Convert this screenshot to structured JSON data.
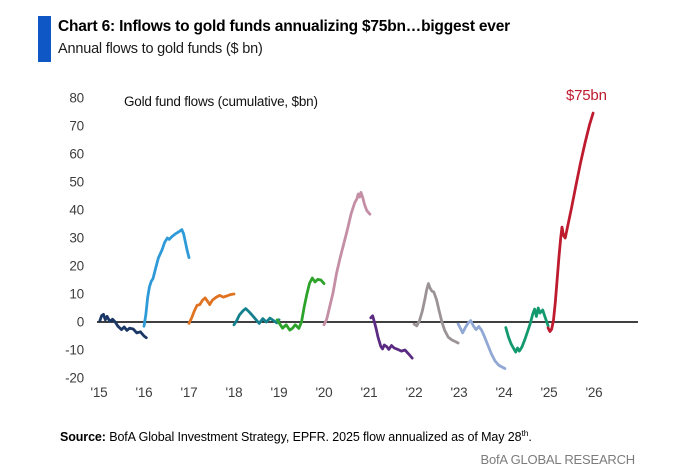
{
  "header": {
    "title": "Chart 6: Inflows to gold funds annualizing $75bn…biggest ever",
    "subtitle": "Annual flows to gold funds ($ bn)"
  },
  "chart_data": {
    "type": "line",
    "title": "Gold fund flows (cumulative, $bn)",
    "annotation": {
      "text": "$75bn",
      "color": "#BE1B2E"
    },
    "x_tick_labels": [
      "'15",
      "'16",
      "'17",
      "'18",
      "'19",
      "'20",
      "'21",
      "'22",
      "'23",
      "'24",
      "'25",
      "'26"
    ],
    "y_ticks": [
      80,
      70,
      60,
      50,
      40,
      30,
      20,
      10,
      0,
      -10,
      -20
    ],
    "ylim": [
      -20,
      80
    ],
    "grid": false,
    "legend": "none",
    "x_unit": "years since start of 2015; each series spans roughly one calendar year",
    "y_unit": "$bn cumulative flow",
    "series": [
      {
        "name": "2015",
        "color": "#1A3766",
        "points": [
          [
            0.02,
            0.5
          ],
          [
            0.06,
            2.3
          ],
          [
            0.1,
            2.7
          ],
          [
            0.14,
            0.8
          ],
          [
            0.18,
            2.0
          ],
          [
            0.24,
            0.2
          ],
          [
            0.3,
            1.0
          ],
          [
            0.36,
            0.0
          ],
          [
            0.42,
            -1.5
          ],
          [
            0.5,
            -2.7
          ],
          [
            0.56,
            -1.8
          ],
          [
            0.62,
            -3.0
          ],
          [
            0.68,
            -2.2
          ],
          [
            0.76,
            -2.5
          ],
          [
            0.84,
            -3.9
          ],
          [
            0.92,
            -3.5
          ],
          [
            1.0,
            -5.0
          ],
          [
            1.05,
            -5.6
          ]
        ]
      },
      {
        "name": "2016",
        "color": "#2E9BD8",
        "points": [
          [
            1.0,
            -1.5
          ],
          [
            1.04,
            2.5
          ],
          [
            1.08,
            8.6
          ],
          [
            1.12,
            12.5
          ],
          [
            1.16,
            14.5
          ],
          [
            1.2,
            15.5
          ],
          [
            1.26,
            19.3
          ],
          [
            1.32,
            22.9
          ],
          [
            1.4,
            25.7
          ],
          [
            1.46,
            28.5
          ],
          [
            1.52,
            30.0
          ],
          [
            1.56,
            29.5
          ],
          [
            1.62,
            30.5
          ],
          [
            1.7,
            31.5
          ],
          [
            1.78,
            32.3
          ],
          [
            1.84,
            33.0
          ],
          [
            1.88,
            31.5
          ],
          [
            1.92,
            28.5
          ],
          [
            1.96,
            25.5
          ],
          [
            2.0,
            23.0
          ]
        ]
      },
      {
        "name": "2017",
        "color": "#DF7321",
        "points": [
          [
            2.0,
            -0.5
          ],
          [
            2.06,
            1.5
          ],
          [
            2.12,
            4.0
          ],
          [
            2.18,
            6.0
          ],
          [
            2.24,
            6.2
          ],
          [
            2.3,
            7.8
          ],
          [
            2.36,
            8.6
          ],
          [
            2.42,
            7.2
          ],
          [
            2.46,
            6.2
          ],
          [
            2.52,
            7.8
          ],
          [
            2.6,
            8.8
          ],
          [
            2.68,
            9.5
          ],
          [
            2.76,
            8.9
          ],
          [
            2.84,
            9.3
          ],
          [
            2.92,
            9.8
          ],
          [
            3.0,
            10.0
          ]
        ]
      },
      {
        "name": "2018",
        "color": "#15808D",
        "points": [
          [
            3.0,
            -1.0
          ],
          [
            3.06,
            0.5
          ],
          [
            3.12,
            2.5
          ],
          [
            3.2,
            4.0
          ],
          [
            3.26,
            4.8
          ],
          [
            3.32,
            3.9
          ],
          [
            3.4,
            2.5
          ],
          [
            3.48,
            1.0
          ],
          [
            3.56,
            -0.5
          ],
          [
            3.64,
            1.2
          ],
          [
            3.72,
            0.0
          ],
          [
            3.8,
            1.4
          ],
          [
            3.88,
            0.5
          ],
          [
            3.95,
            -0.3
          ],
          [
            4.0,
            0.8
          ]
        ]
      },
      {
        "name": "2019",
        "color": "#2EA32C",
        "points": [
          [
            3.96,
            0.8
          ],
          [
            4.02,
            -0.8
          ],
          [
            4.08,
            -2.2
          ],
          [
            4.16,
            -1.0
          ],
          [
            4.24,
            -2.9
          ],
          [
            4.3,
            -2.2
          ],
          [
            4.36,
            -1.0
          ],
          [
            4.44,
            -2.3
          ],
          [
            4.5,
            0.0
          ],
          [
            4.56,
            5.4
          ],
          [
            4.62,
            10.0
          ],
          [
            4.68,
            13.9
          ],
          [
            4.74,
            15.7
          ],
          [
            4.8,
            14.3
          ],
          [
            4.86,
            15.2
          ],
          [
            4.93,
            15.0
          ],
          [
            5.0,
            13.7
          ]
        ]
      },
      {
        "name": "2020",
        "color": "#C48EA4",
        "points": [
          [
            5.0,
            -1.0
          ],
          [
            5.06,
            1.0
          ],
          [
            5.12,
            5.0
          ],
          [
            5.2,
            10.4
          ],
          [
            5.28,
            17.5
          ],
          [
            5.36,
            23.0
          ],
          [
            5.44,
            28.0
          ],
          [
            5.52,
            33.0
          ],
          [
            5.6,
            38.5
          ],
          [
            5.68,
            42.5
          ],
          [
            5.73,
            44.0
          ],
          [
            5.76,
            45.7
          ],
          [
            5.79,
            44.6
          ],
          [
            5.82,
            46.3
          ],
          [
            5.86,
            44.5
          ],
          [
            5.9,
            42.0
          ],
          [
            5.95,
            39.8
          ],
          [
            6.02,
            38.5
          ]
        ]
      },
      {
        "name": "2021",
        "color": "#5B2B84",
        "points": [
          [
            6.04,
            1.5
          ],
          [
            6.08,
            2.2
          ],
          [
            6.12,
            0.0
          ],
          [
            6.16,
            -2.5
          ],
          [
            6.2,
            -5.4
          ],
          [
            6.26,
            -8.6
          ],
          [
            6.3,
            -9.6
          ],
          [
            6.34,
            -8.2
          ],
          [
            6.4,
            -8.9
          ],
          [
            6.44,
            -9.8
          ],
          [
            6.5,
            -8.4
          ],
          [
            6.56,
            -9.3
          ],
          [
            6.64,
            -9.8
          ],
          [
            6.72,
            -10.4
          ],
          [
            6.8,
            -10.0
          ],
          [
            6.88,
            -11.4
          ],
          [
            6.96,
            -12.9
          ]
        ]
      },
      {
        "name": "2022",
        "color": "#9B9396",
        "points": [
          [
            7.0,
            -0.7
          ],
          [
            7.06,
            -1.4
          ],
          [
            7.12,
            0.4
          ],
          [
            7.18,
            3.6
          ],
          [
            7.24,
            8.0
          ],
          [
            7.28,
            11.4
          ],
          [
            7.32,
            13.7
          ],
          [
            7.36,
            12.0
          ],
          [
            7.4,
            11.0
          ],
          [
            7.44,
            10.7
          ],
          [
            7.5,
            8.0
          ],
          [
            7.56,
            3.9
          ],
          [
            7.62,
            0.0
          ],
          [
            7.68,
            -2.9
          ],
          [
            7.76,
            -5.4
          ],
          [
            7.84,
            -6.4
          ],
          [
            7.92,
            -7.0
          ],
          [
            7.98,
            -7.5
          ]
        ]
      },
      {
        "name": "2023",
        "color": "#90A8D3",
        "points": [
          [
            7.98,
            -0.7
          ],
          [
            8.04,
            -2.5
          ],
          [
            8.08,
            -3.9
          ],
          [
            8.14,
            -2.0
          ],
          [
            8.2,
            -0.4
          ],
          [
            8.26,
            0.5
          ],
          [
            8.32,
            -1.4
          ],
          [
            8.38,
            -2.7
          ],
          [
            8.44,
            -1.6
          ],
          [
            8.5,
            -2.9
          ],
          [
            8.56,
            -5.0
          ],
          [
            8.64,
            -8.2
          ],
          [
            8.72,
            -11.4
          ],
          [
            8.8,
            -13.9
          ],
          [
            8.88,
            -15.4
          ],
          [
            8.96,
            -16.1
          ],
          [
            9.02,
            -16.6
          ]
        ]
      },
      {
        "name": "2024",
        "color": "#12996E",
        "points": [
          [
            9.04,
            -2.0
          ],
          [
            9.1,
            -5.4
          ],
          [
            9.16,
            -7.9
          ],
          [
            9.22,
            -9.6
          ],
          [
            9.26,
            -10.7
          ],
          [
            9.3,
            -9.3
          ],
          [
            9.34,
            -10.4
          ],
          [
            9.4,
            -8.9
          ],
          [
            9.46,
            -6.4
          ],
          [
            9.52,
            -3.6
          ],
          [
            9.58,
            -0.7
          ],
          [
            9.64,
            2.9
          ],
          [
            9.68,
            4.6
          ],
          [
            9.72,
            2.0
          ],
          [
            9.76,
            5.0
          ],
          [
            9.8,
            3.2
          ],
          [
            9.86,
            4.3
          ],
          [
            9.92,
            1.4
          ],
          [
            9.98,
            -1.4
          ]
        ]
      },
      {
        "name": "2025",
        "color": "#BE1B2E",
        "points": [
          [
            9.98,
            -2.1
          ],
          [
            10.02,
            -3.4
          ],
          [
            10.06,
            -2.5
          ],
          [
            10.1,
            0.7
          ],
          [
            10.14,
            7.0
          ],
          [
            10.18,
            15.0
          ],
          [
            10.22,
            23.0
          ],
          [
            10.26,
            30.0
          ],
          [
            10.29,
            33.9
          ],
          [
            10.32,
            31.0
          ],
          [
            10.36,
            30.0
          ],
          [
            10.42,
            34.6
          ],
          [
            10.5,
            40.7
          ],
          [
            10.6,
            48.9
          ],
          [
            10.7,
            56.8
          ],
          [
            10.8,
            63.9
          ],
          [
            10.9,
            70.4
          ],
          [
            10.98,
            74.6
          ]
        ]
      }
    ]
  },
  "footer": {
    "source_label": "Source:",
    "source_text": " BofA Global Investment Strategy, EPFR. 2025 flow annualized as of May 28",
    "source_sup": "th",
    "source_period": ".",
    "branding": "BofA GLOBAL RESEARCH"
  },
  "colors": {
    "accent_bar": "#1057C6",
    "axis_text": "#3d3d3d",
    "zero_line": "#000000",
    "branding_text": "#7C7C7C"
  }
}
